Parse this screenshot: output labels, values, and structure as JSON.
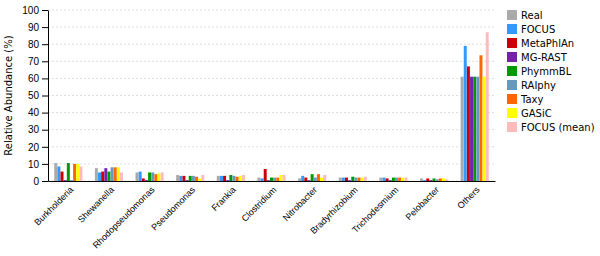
{
  "chart_data": {
    "type": "bar",
    "categories": [
      "Burkholderia",
      "Shewanella",
      "Rhodopseudomonas",
      "Pseudomonas",
      "Frankia",
      "Clostridium",
      "Nitrobacter",
      "Bradyrhizobium",
      "Trichodesmium",
      "Pelobacter",
      "Others"
    ],
    "series": [
      {
        "name": "Real",
        "color": "#aaaaaa",
        "values": [
          10.5,
          7.5,
          5.0,
          3.5,
          3.0,
          2.0,
          1.5,
          2.0,
          2.0,
          1.5,
          61.0
        ]
      },
      {
        "name": "FOCUS",
        "color": "#3399ff",
        "values": [
          8.5,
          5.0,
          5.5,
          3.0,
          3.0,
          1.5,
          3.0,
          2.0,
          2.0,
          0.5,
          79.0
        ]
      },
      {
        "name": "MetaPhlAn",
        "color": "#cc0000",
        "values": [
          5.5,
          5.5,
          1.5,
          3.0,
          3.0,
          7.0,
          2.0,
          2.0,
          1.5,
          1.5,
          67.0
        ]
      },
      {
        "name": "MG-RAST",
        "color": "#7722aa",
        "values": [
          0.5,
          7.5,
          0.5,
          0.5,
          0.5,
          0.5,
          0.5,
          0.5,
          0.5,
          0.5,
          61.0
        ]
      },
      {
        "name": "PhymmBL",
        "color": "#009900",
        "values": [
          10.5,
          5.5,
          5.0,
          3.0,
          3.5,
          2.0,
          4.0,
          2.5,
          2.0,
          1.5,
          61.0
        ]
      },
      {
        "name": "RAIphy",
        "color": "#6699bb",
        "values": [
          0.5,
          8.0,
          5.0,
          3.0,
          3.0,
          2.0,
          2.0,
          2.0,
          2.0,
          1.0,
          61.0
        ]
      },
      {
        "name": "Taxy",
        "color": "#ff6600",
        "values": [
          10.0,
          8.0,
          4.0,
          2.5,
          2.5,
          2.0,
          4.0,
          2.0,
          2.0,
          1.5,
          73.5
        ]
      },
      {
        "name": "GASiC",
        "color": "#ffff00",
        "values": [
          10.0,
          8.0,
          4.5,
          1.5,
          3.0,
          3.5,
          2.0,
          2.0,
          2.0,
          1.5,
          61.0
        ]
      },
      {
        "name": "FOCUS (mean)",
        "color": "#ffbbbb",
        "values": [
          8.5,
          5.0,
          5.0,
          3.5,
          3.5,
          3.5,
          3.5,
          2.5,
          2.0,
          1.0,
          87.0
        ]
      }
    ],
    "ylabel": "Relative Abundance (%)",
    "ylim": [
      0,
      100
    ],
    "yticks": [
      0,
      10,
      20,
      30,
      40,
      50,
      60,
      70,
      80,
      90,
      100
    ],
    "grid": true,
    "legend": "right"
  }
}
